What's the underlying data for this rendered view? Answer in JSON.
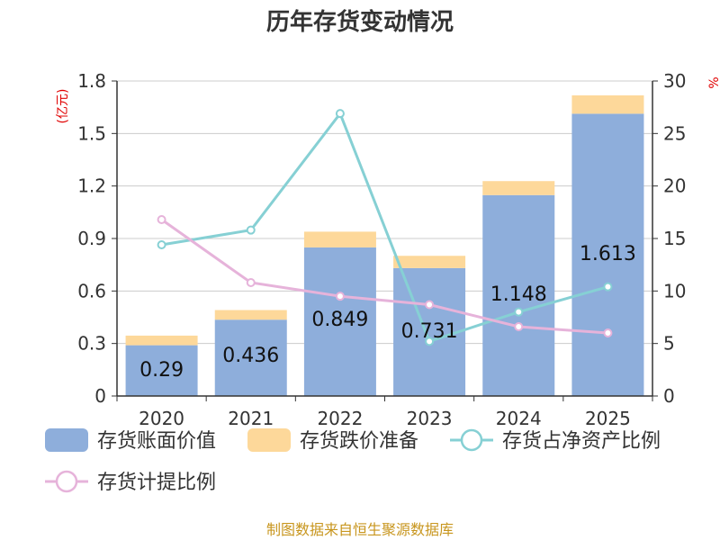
{
  "chart_data": {
    "type": "bar",
    "title": "历年存货变动情况",
    "categories": [
      "2020",
      "2021",
      "2022",
      "2023",
      "2024",
      "2025"
    ],
    "series": [
      {
        "name": "存货账面价值",
        "kind": "bar",
        "axis": "left",
        "color": "#8eaedb",
        "values": [
          0.29,
          0.436,
          0.849,
          0.731,
          1.148,
          1.613
        ],
        "labels": [
          "0.29",
          "0.436",
          "0.849",
          "0.731",
          "1.148",
          "1.613"
        ]
      },
      {
        "name": "存货跌价准备",
        "kind": "bar-stack",
        "axis": "left",
        "color": "#fdd89a",
        "values": [
          0.055,
          0.055,
          0.09,
          0.07,
          0.08,
          0.105
        ]
      },
      {
        "name": "存货占净资产比例",
        "kind": "line",
        "axis": "right",
        "color": "#86d0d4",
        "values": [
          14.4,
          15.8,
          26.9,
          5.2,
          8.0,
          10.4
        ]
      },
      {
        "name": "存货计提比例",
        "kind": "line",
        "axis": "right",
        "color": "#e6b3da",
        "values": [
          16.8,
          10.8,
          9.5,
          8.7,
          6.6,
          6.0
        ]
      }
    ],
    "left_axis": {
      "unit": "(亿元)",
      "ticks": [
        "0",
        "0.3",
        "0.6",
        "0.9",
        "1.2",
        "1.5",
        "1.8"
      ],
      "range": [
        0,
        1.8
      ]
    },
    "right_axis": {
      "unit": "%",
      "ticks": [
        "0",
        "5",
        "10",
        "15",
        "20",
        "25",
        "30"
      ],
      "range": [
        0,
        30
      ]
    },
    "grid": true,
    "legend_position": "bottom"
  },
  "source": "制图数据来自恒生聚源数据库"
}
